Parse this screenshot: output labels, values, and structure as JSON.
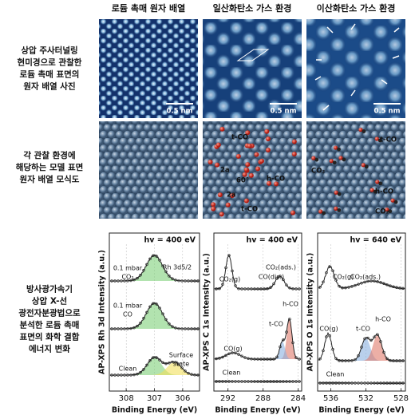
{
  "columns": [
    "로듐 촉매 원자 배열",
    "일산화탄소 가스 환경",
    "이산화탄소 가스 환경"
  ],
  "rows": [
    {
      "label": [
        "상압 주사터널링",
        "현미경으로 관찰한",
        "로듐 촉매 표면의",
        "원자 배열 사진"
      ]
    },
    {
      "label": [
        "각 관찰 환경에",
        "해당하는 모델 표면",
        "원자 배열 모식도"
      ]
    },
    {
      "label": [
        "방사광가속기",
        "상압 X-선",
        "광전자분광법으로",
        "분석한 로듐 촉매",
        "표면의 화학 결합",
        "에너지 변화"
      ]
    }
  ],
  "stm_scale_bars": [
    "0.5 nm",
    "0.5 nm",
    "0.5 nm"
  ],
  "model_annotations": {
    "co": [
      "t-CO",
      "h-CO",
      "2a",
      "60°",
      "2a",
      "t-CO"
    ],
    "co2": [
      "t-CO",
      "CO₂",
      "h-CO",
      "CO₂"
    ]
  },
  "xps": [
    {
      "hv": "hv = 400 eV",
      "ylabel": "AP-XPS Rh 3d Intensity (a.u.)",
      "xlabel": "Binding Energy (eV)",
      "xlim": [
        308.6,
        305.4
      ],
      "xticks": [
        308,
        307,
        306
      ],
      "labels": [
        "0.1 mbar",
        "CO₂",
        "Rh 3d5/2",
        "0.1 mbar",
        "CO",
        "Surface",
        "state",
        "Clean"
      ]
    },
    {
      "hv": "hv = 400 eV",
      "ylabel": "AP-XPS C 1s Intensity (a.u.)",
      "xlabel": "Binding Energy (eV)",
      "xlim": [
        293.6,
        283.6
      ],
      "xticks": [
        292,
        288,
        284
      ],
      "labels": [
        "CO₂(g)",
        "CO₂(ads.)",
        "CO(dis.)",
        "h-CO",
        "t-CO",
        "CO(g)",
        "Clean"
      ]
    },
    {
      "hv": "hv = 640 eV",
      "ylabel": "AP-XPS O 1s Intensity (a.u.)",
      "xlabel": "Binding Energy (eV)",
      "xlim": [
        537.5,
        527.5
      ],
      "xticks": [
        536,
        532,
        528
      ],
      "labels": [
        "CO₂(g)",
        "CO₂(ads.)",
        "CO(g)",
        "t-CO",
        "h-CO",
        "Clean"
      ]
    }
  ]
}
